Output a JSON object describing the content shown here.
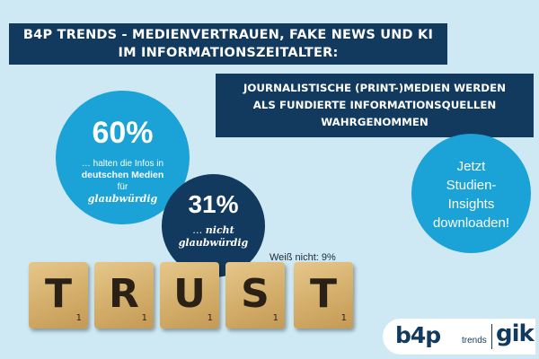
{
  "header": {
    "title_line1": "B4P TRENDS - MEDIENVERTRAUEN, FAKE NEWS UND KI",
    "title_line2": "IM INFORMATIONSZEITALTER:"
  },
  "subheader": {
    "line1": "JOURNALISTISCHE (PRINT-)MEDIEN  WERDEN",
    "line2": "ALS FUNDIERTE INFORMATIONSQUELLEN",
    "line3": "WAHRGENOMMEN"
  },
  "stat_trust": {
    "value": "60%",
    "line1": "… halten die Infos in",
    "line2": "deutschen Medien",
    "line3": "für",
    "line4": "glaubwürdig"
  },
  "stat_no_trust": {
    "value": "31%",
    "line1_prefix": "… ",
    "line1_word": "nicht",
    "line2": "glaubwürdig"
  },
  "dont_know": "Weiß nicht: 9%",
  "cta": {
    "line1": "Jetzt",
    "line2": "Studien-",
    "line3": "Insights",
    "line4": "downloaden!"
  },
  "tiles": [
    {
      "letter": "T",
      "points": "1"
    },
    {
      "letter": "R",
      "points": "1"
    },
    {
      "letter": "U",
      "points": "1"
    },
    {
      "letter": "S",
      "points": "1"
    },
    {
      "letter": "T",
      "points": "1"
    }
  ],
  "logo": {
    "brand1": "b4p",
    "brand1_suffix": "trends",
    "brand2": "gik"
  },
  "colors": {
    "background": "#cfe9f4",
    "navy": "#123a5e",
    "cyan": "#1ba2d6"
  }
}
